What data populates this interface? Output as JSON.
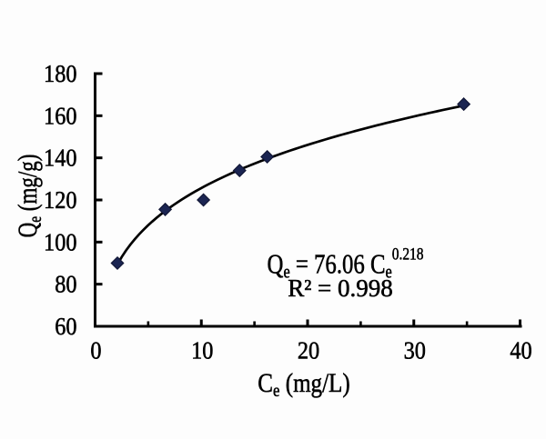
{
  "figure": {
    "background_color": "#fdfdfd",
    "text_color": "#000000"
  },
  "chart_data": {
    "type": "scatter",
    "title": "",
    "xlabel": "Ce (mg/L)",
    "ylabel": "Qe (mg/g)",
    "xlim": [
      0,
      40
    ],
    "ylim": [
      60,
      180
    ],
    "x_major_ticks": [
      0,
      10,
      20,
      30,
      40
    ],
    "x_minor_ticks": [
      5,
      15,
      25,
      35
    ],
    "y_major_ticks": [
      60,
      80,
      100,
      120,
      140,
      160,
      180
    ],
    "grid": false,
    "legend": false,
    "points": [
      [
        2.1,
        90
      ],
      [
        6.6,
        115.5
      ],
      [
        10.2,
        120
      ],
      [
        13.6,
        134
      ],
      [
        16.2,
        140.5
      ],
      [
        34.7,
        165.5
      ]
    ],
    "fit_curve": {
      "type": "power",
      "coefficient": 76.06,
      "exponent": 0.218,
      "r_squared": 0.998,
      "x_start": 2.1,
      "x_end": 34.7,
      "color": "#000000"
    },
    "marker": {
      "shape": "diamond",
      "fill": "#1b2552",
      "stroke": "#121736"
    },
    "annotation": {
      "line1": "Qe = 76.06 Ce^0.218",
      "line2": "R² = 0.998"
    }
  },
  "labels": {
    "y_title": {
      "main": "Q",
      "sub": "e",
      "unit": " (mg/g)"
    },
    "x_title": {
      "main": "C",
      "sub": "e",
      "unit": " (mg/L)"
    },
    "equation": {
      "lhs": "Q",
      "lhs_sub": "e",
      "mid": " = 76.06 C",
      "mid_sub": "e",
      "exp": "0.218"
    },
    "r_squared_text": "R² = 0.998"
  }
}
